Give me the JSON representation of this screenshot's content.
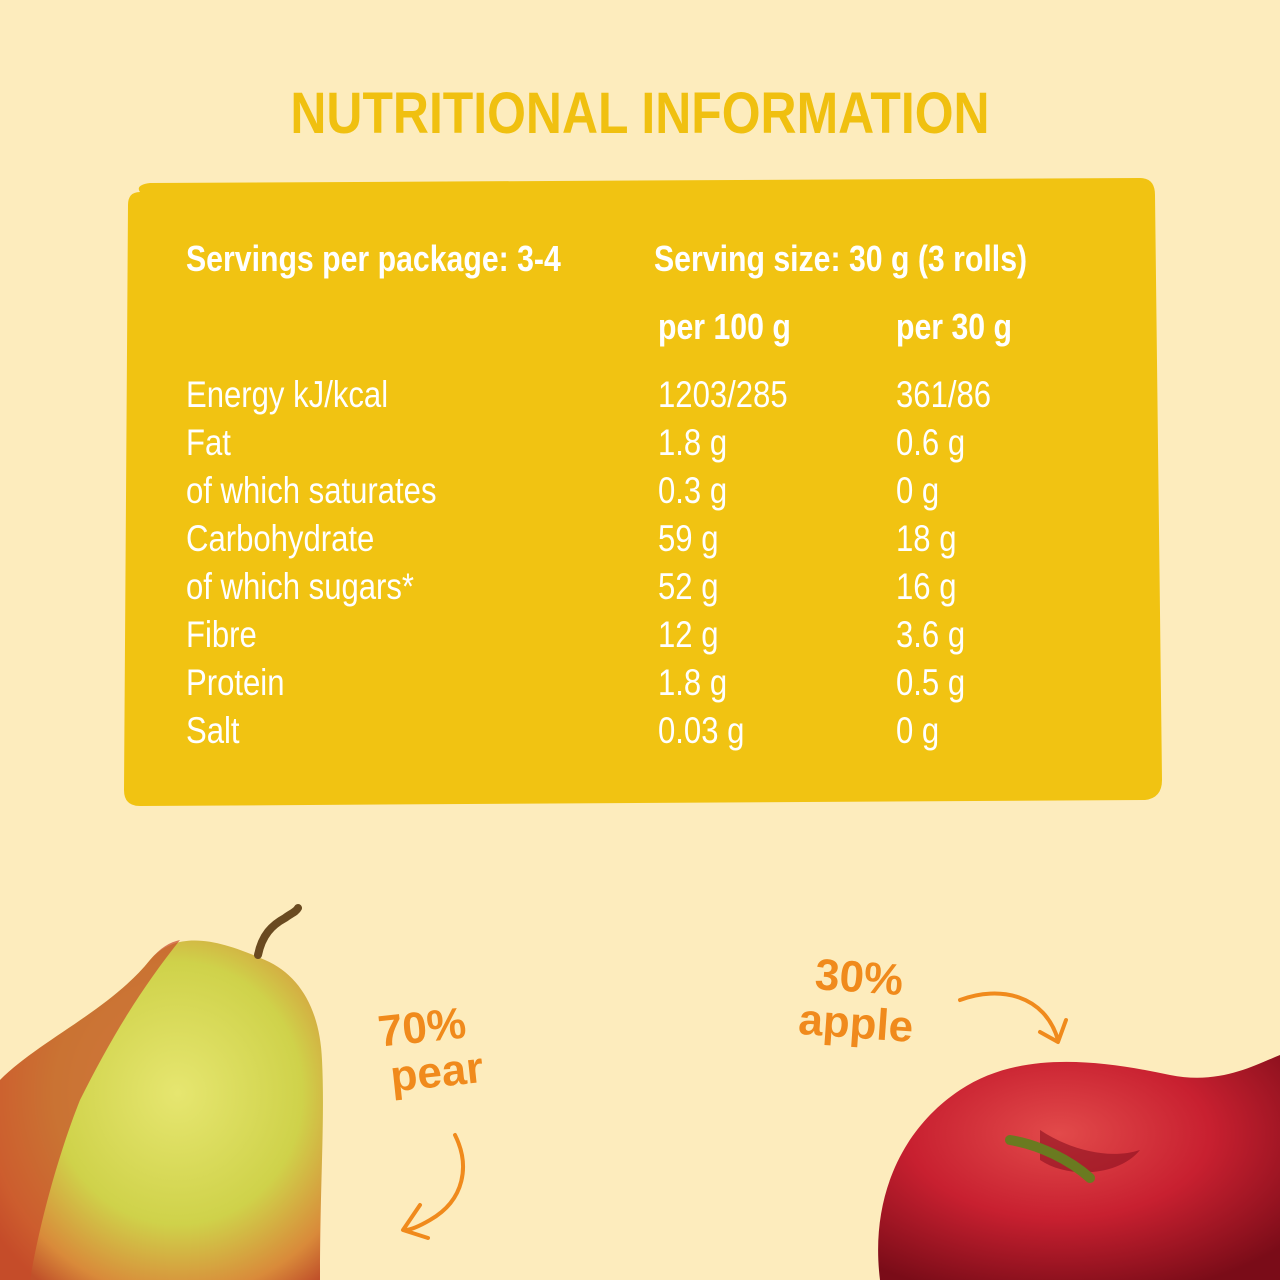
{
  "title": "NUTRITIONAL INFORMATION",
  "header": {
    "servings": "Servings per package: 3-4",
    "serving_size": "Serving size: 30 g (3 rolls)",
    "col_100": "per 100 g",
    "col_30": "per 30 g"
  },
  "rows": [
    {
      "name": "Energy kJ/kcal",
      "per100": "1203/285",
      "per30": "361/86"
    },
    {
      "name": "Fat",
      "per100": "1.8 g",
      "per30": "0.6 g"
    },
    {
      "name": "of which saturates",
      "per100": "0.3 g",
      "per30": "0 g"
    },
    {
      "name": "Carbohydrate",
      "per100": "59 g",
      "per30": "18 g"
    },
    {
      "name": "of which sugars*",
      "per100": "52 g",
      "per30": "16 g"
    },
    {
      "name": "Fibre",
      "per100": "12 g",
      "per30": "3.6 g"
    },
    {
      "name": "Protein",
      "per100": "1.8 g",
      "per30": "0.5 g"
    },
    {
      "name": "Salt",
      "per100": "0.03 g",
      "per30": "0 g"
    }
  ],
  "pear_label": {
    "pct": "70%",
    "name": "pear"
  },
  "apple_label": {
    "pct": "30%",
    "name": "apple"
  },
  "colors": {
    "background": "#fdecbd",
    "panel": "#f1c312",
    "title": "#f0c010",
    "accent": "#f08a1c"
  }
}
